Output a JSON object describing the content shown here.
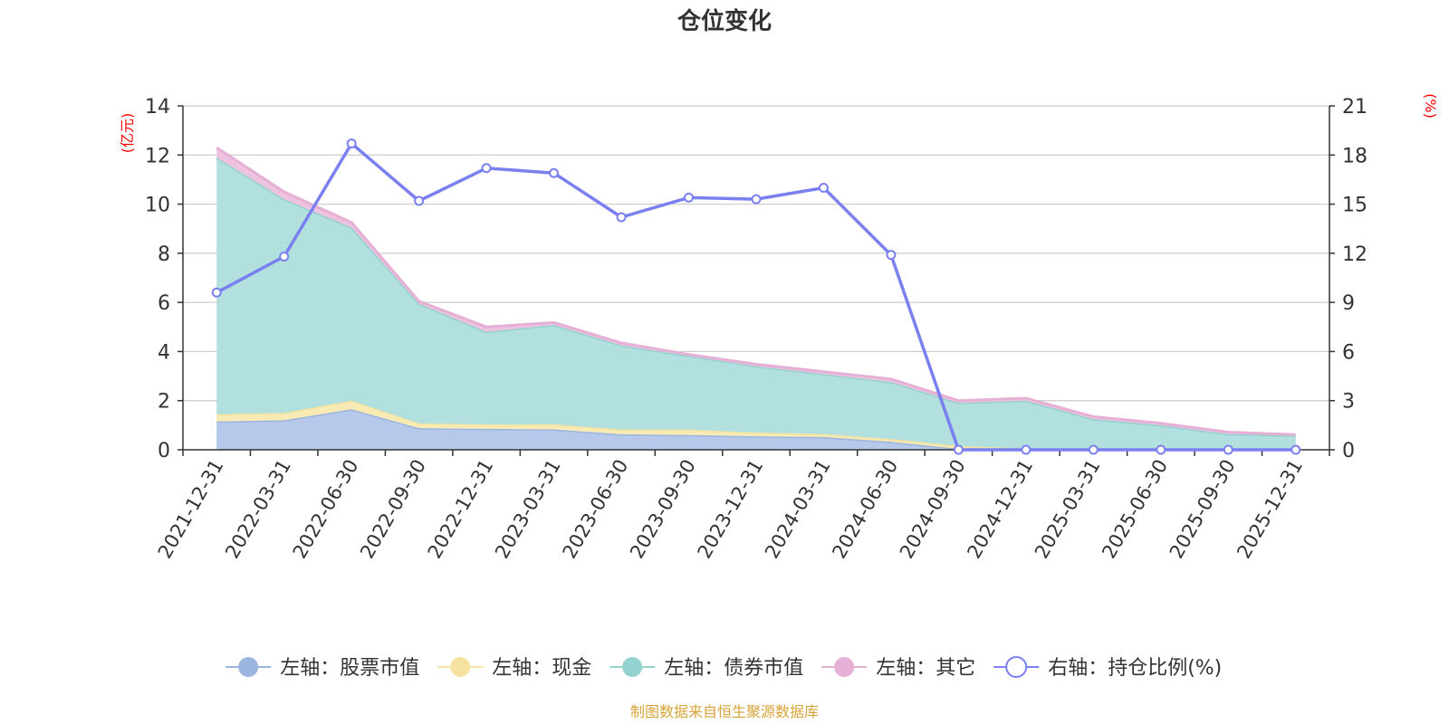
{
  "chart_data": {
    "type": "area",
    "title": "仓位变化",
    "categories": [
      "2021-12-31",
      "2022-03-31",
      "2022-06-30",
      "2022-09-30",
      "2022-12-31",
      "2023-03-31",
      "2023-06-30",
      "2023-09-30",
      "2023-12-31",
      "2024-03-31",
      "2024-06-30",
      "2024-09-30",
      "2024-12-31",
      "2025-03-31",
      "2025-06-30",
      "2025-09-30",
      "2025-12-31"
    ],
    "left_axis": {
      "unit_label": "(亿元)",
      "min": 0,
      "max": 14,
      "ticks": [
        "0",
        "2",
        "4",
        "6",
        "8",
        "10",
        "12",
        "14"
      ]
    },
    "right_axis": {
      "unit_label": "(%)",
      "min": 0,
      "max": 21,
      "ticks": [
        "0",
        "3",
        "6",
        "9",
        "12",
        "15",
        "18",
        "21"
      ]
    },
    "series": [
      {
        "name": "左轴：股票市值",
        "axis": "left",
        "kind": "stacked-area",
        "color": "#9bb5e0",
        "fill": "#b6c9ea",
        "values": [
          1.15,
          1.2,
          1.65,
          0.88,
          0.85,
          0.83,
          0.63,
          0.6,
          0.55,
          0.52,
          0.32,
          0.04,
          0.0,
          0.0,
          0.0,
          0.0,
          0.0
        ]
      },
      {
        "name": "左轴：现金",
        "axis": "left",
        "kind": "stacked-area",
        "color": "#f6e3a1",
        "fill": "#f8eab5",
        "values": [
          0.3,
          0.3,
          0.35,
          0.2,
          0.18,
          0.2,
          0.2,
          0.22,
          0.15,
          0.12,
          0.12,
          0.12,
          0.05,
          0.05,
          0.05,
          0.04,
          0.03
        ]
      },
      {
        "name": "左轴：债券市值",
        "axis": "left",
        "kind": "stacked-area",
        "color": "#93d2cf",
        "fill": "#b2e0de",
        "values": [
          10.45,
          8.7,
          7.05,
          4.87,
          3.77,
          4.05,
          3.42,
          3.0,
          2.7,
          2.44,
          2.32,
          1.75,
          1.95,
          1.2,
          0.95,
          0.6,
          0.55
        ]
      },
      {
        "name": "左轴：其它",
        "axis": "left",
        "kind": "stacked-area",
        "color": "#e6b0d6",
        "fill": "#eec3e2",
        "values": [
          0.4,
          0.3,
          0.2,
          0.1,
          0.2,
          0.1,
          0.1,
          0.06,
          0.08,
          0.1,
          0.12,
          0.09,
          0.1,
          0.1,
          0.08,
          0.08,
          0.04
        ]
      },
      {
        "name": "右轴：持仓比例(%)",
        "axis": "right",
        "kind": "line",
        "color": "#7b80f0",
        "values": [
          9.6,
          11.8,
          18.7,
          15.2,
          17.2,
          16.9,
          14.2,
          15.4,
          15.3,
          16.0,
          11.9,
          0.0,
          0.0,
          0.0,
          0.0,
          0.0,
          0.0
        ]
      }
    ],
    "grid": true,
    "legend_position": "bottom",
    "source_note": "制图数据来自恒生聚源数据库",
    "colors": {
      "axis": "#333333",
      "grid": "#cccccc",
      "unit_label": "#ff0000",
      "source_note": "#d8a43a"
    }
  }
}
